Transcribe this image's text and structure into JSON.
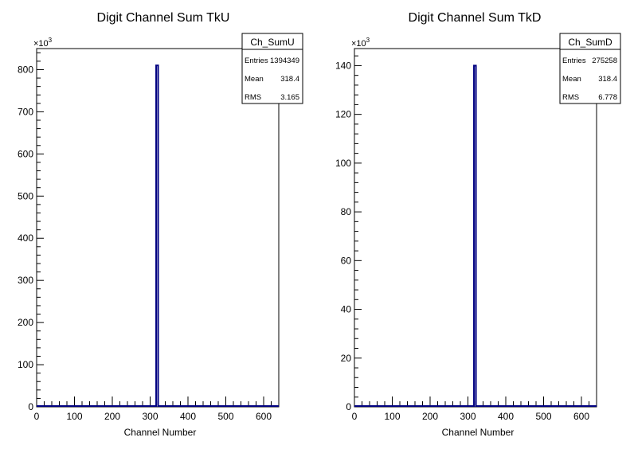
{
  "chart_data": [
    {
      "type": "bar",
      "title": "Digit Channel Sum TkU",
      "xlabel": "Channel Number",
      "ylabel": "",
      "multiplier": "×10",
      "multiplier_exp": "3",
      "xlim": [
        0,
        640
      ],
      "ylim": [
        0,
        850
      ],
      "x_ticks": [
        0,
        100,
        200,
        300,
        400,
        500,
        600
      ],
      "y_ticks": [
        0,
        100,
        200,
        300,
        400,
        500,
        600,
        700,
        800
      ],
      "peak": {
        "x": 318,
        "y": 810
      },
      "line_color": "#000080",
      "stats": {
        "name": "Ch_SumU",
        "rows": [
          {
            "label": "Entries",
            "value": "1394349"
          },
          {
            "label": "Mean",
            "value": "318.4"
          },
          {
            "label": "RMS",
            "value": "3.165"
          }
        ]
      }
    },
    {
      "type": "bar",
      "title": "Digit Channel Sum TkD",
      "xlabel": "Channel Number",
      "ylabel": "",
      "multiplier": "×10",
      "multiplier_exp": "3",
      "xlim": [
        0,
        640
      ],
      "ylim": [
        0,
        147
      ],
      "x_ticks": [
        0,
        100,
        200,
        300,
        400,
        500,
        600
      ],
      "y_ticks": [
        0,
        20,
        40,
        60,
        80,
        100,
        120,
        140
      ],
      "peak": {
        "x": 318,
        "y": 140
      },
      "line_color": "#000080",
      "stats": {
        "name": "Ch_SumD",
        "rows": [
          {
            "label": "Entries",
            "value": "275258"
          },
          {
            "label": "Mean",
            "value": "318.4"
          },
          {
            "label": "RMS",
            "value": "6.778"
          }
        ]
      }
    }
  ]
}
